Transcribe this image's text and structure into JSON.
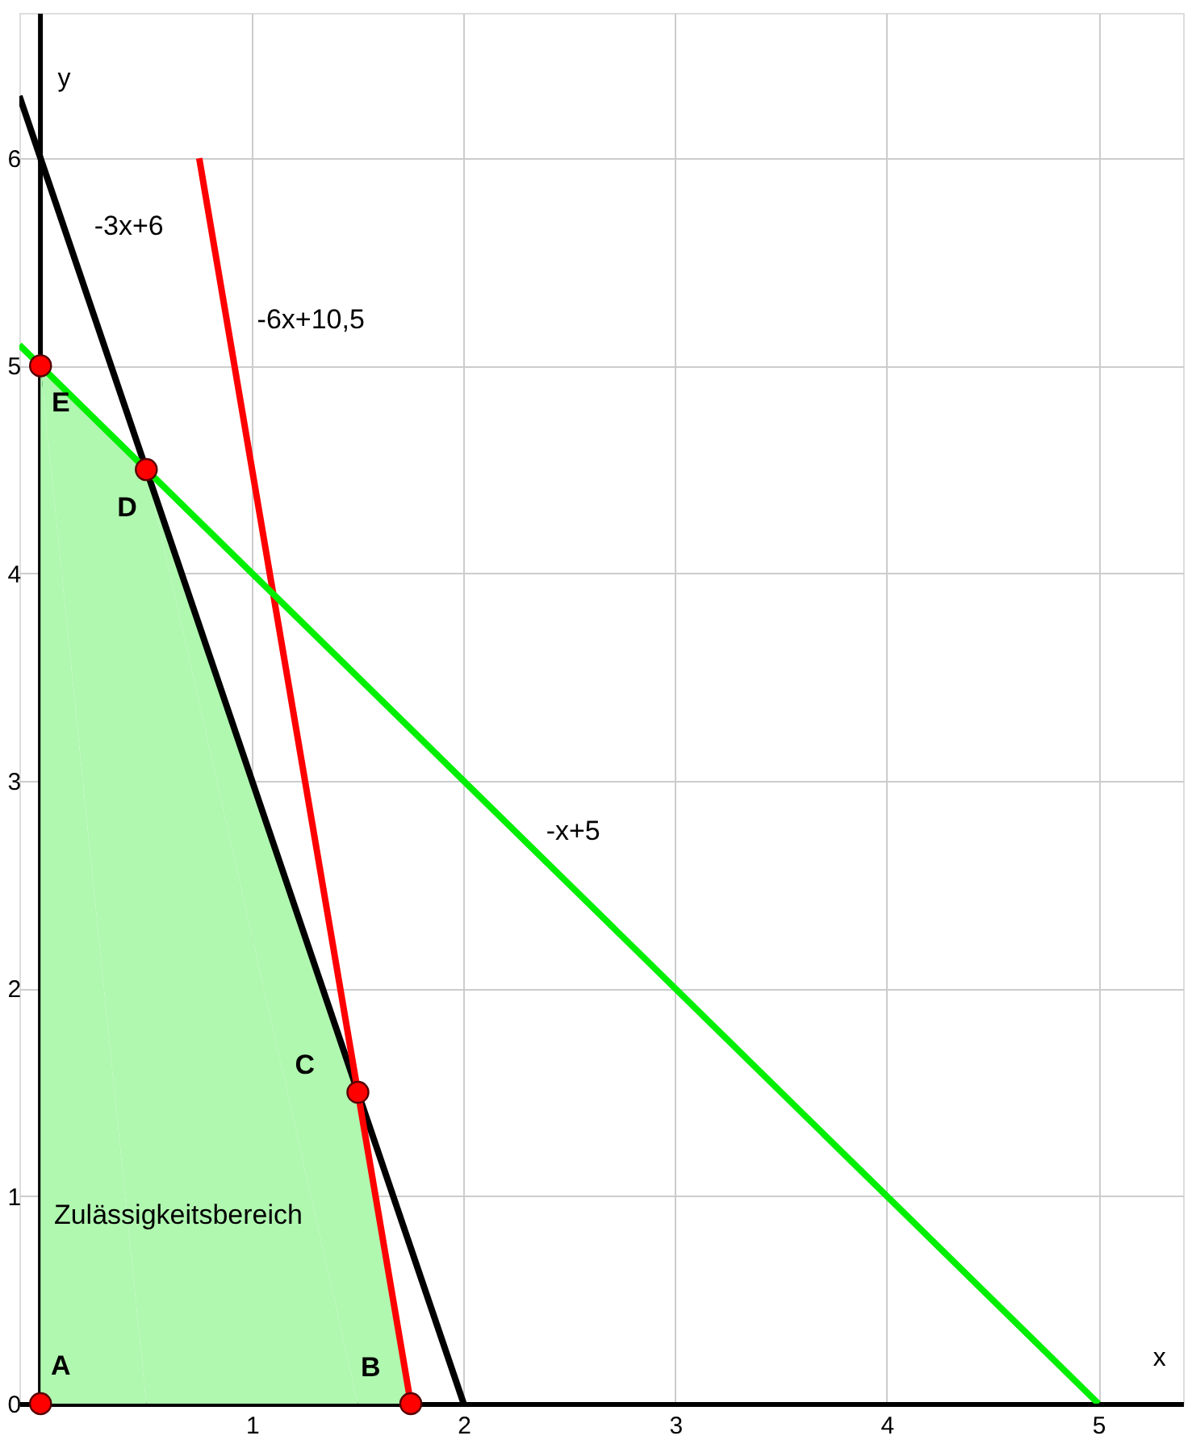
{
  "chart_data": {
    "type": "line",
    "xlabel": "x",
    "ylabel": "y",
    "xlim": [
      -0.1,
      5.4
    ],
    "ylim": [
      0,
      6.7
    ],
    "xticks": [
      {
        "value": 0,
        "label": null
      },
      1,
      2,
      3,
      4,
      5
    ],
    "yticks": [
      0,
      1,
      2,
      3,
      4,
      5,
      6
    ],
    "grid": true,
    "series": [
      {
        "type": "area",
        "name": "Zulässigkeitsbereich",
        "color": "#b0f7b0",
        "x": [
          0,
          0.5,
          1.5,
          1.75
        ],
        "values": [
          5,
          4.5,
          1.5,
          0
        ]
      },
      {
        "name": "-3x+6",
        "color": "#000000",
        "x": [
          -0.1,
          2
        ],
        "values": [
          6.3,
          0
        ]
      },
      {
        "name": "-6x+10,5",
        "color": "#ff0000",
        "x": [
          0.75,
          1.75
        ],
        "values": [
          6,
          0
        ]
      },
      {
        "name": "-x+5",
        "color": "#00ee00",
        "x": [
          -0.1,
          5
        ],
        "values": [
          5.1,
          0
        ]
      },
      {
        "type": "scatter",
        "color": "#ff0000",
        "marker": "circle",
        "x": [
          0,
          1.75,
          1.5,
          0.5,
          0
        ],
        "values": [
          0,
          0,
          1.5,
          4.5,
          5
        ]
      }
    ],
    "annotations": [
      "A",
      "B",
      "C",
      "D",
      "E"
    ]
  }
}
